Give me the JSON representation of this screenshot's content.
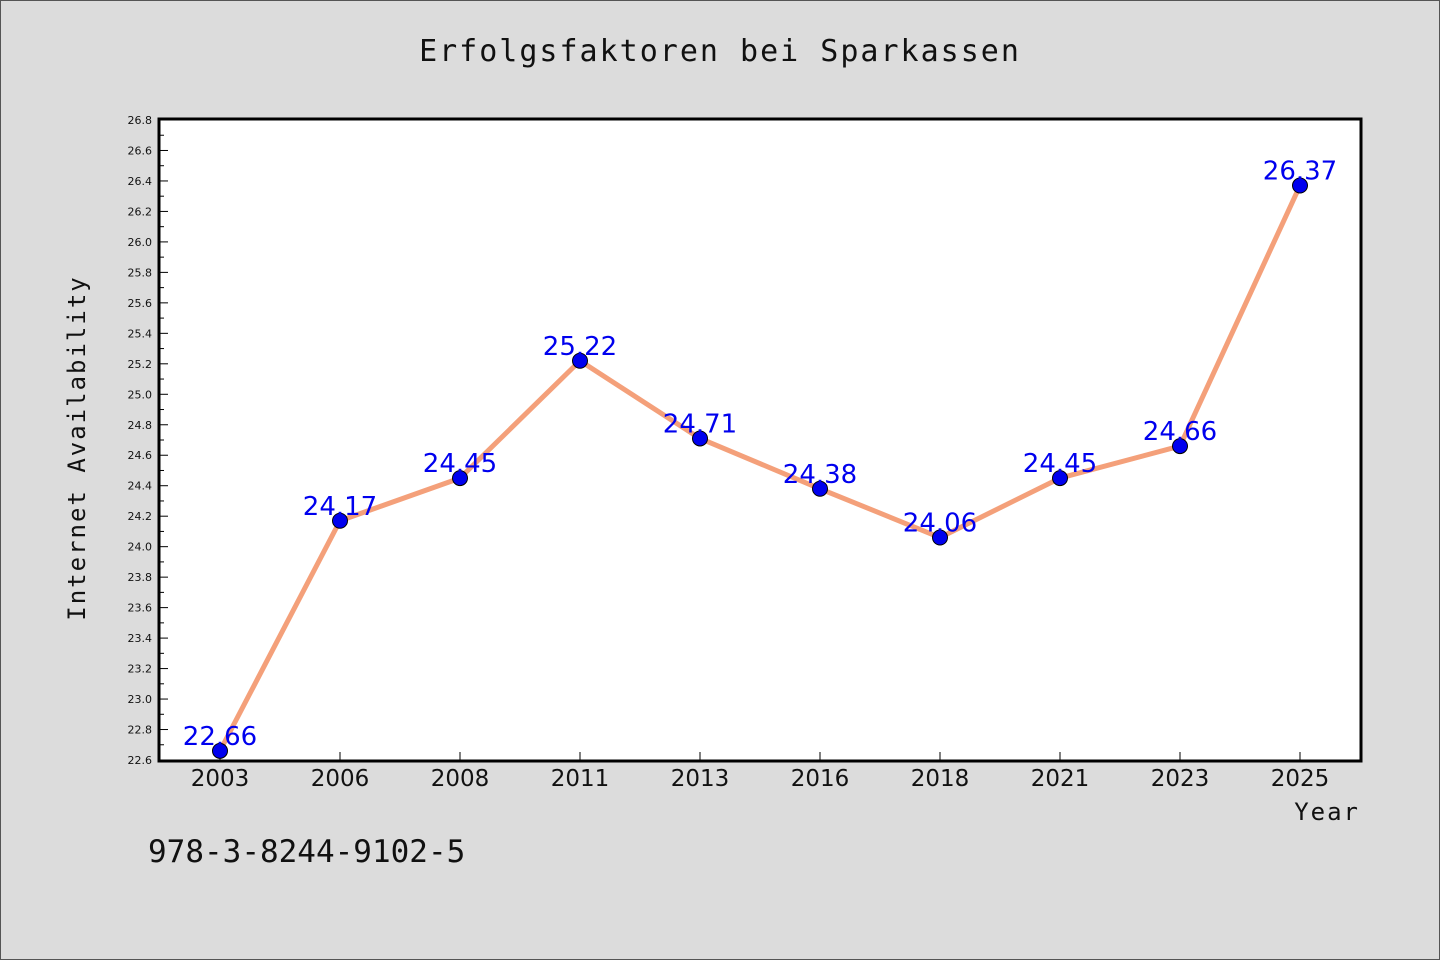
{
  "chart_data": {
    "type": "line",
    "title": "Erfolgsfaktoren bei Sparkassen",
    "xlabel": "Year",
    "ylabel": "Internet Availability",
    "categories": [
      "2003",
      "2006",
      "2008",
      "2011",
      "2013",
      "2016",
      "2018",
      "2021",
      "2023",
      "2025"
    ],
    "series": [
      {
        "values": [
          22.66,
          24.17,
          24.45,
          25.22,
          24.71,
          24.38,
          24.06,
          24.45,
          24.66,
          26.37
        ],
        "line_color": "#f4a07a",
        "marker_color": "#0000ee"
      }
    ],
    "data_labels": [
      "22.66",
      "24.17",
      "24.45",
      "25.22",
      "24.71",
      "24.38",
      "24.06",
      "24.45",
      "24.66",
      "26.37"
    ],
    "ylim": [
      22.6,
      26.8
    ],
    "y_ticks": [
      "22.6",
      "22.8",
      "23.0",
      "23.2",
      "23.4",
      "23.6",
      "23.8",
      "24.0",
      "24.2",
      "24.4",
      "24.6",
      "24.8",
      "25.0",
      "25.2",
      "25.4",
      "25.6",
      "25.8",
      "26.0",
      "26.2",
      "26.4",
      "26.6",
      "26.8"
    ],
    "grid": false,
    "legend": "none"
  },
  "footer": {
    "isbn": "978-3-8244-9102-5"
  },
  "colors": {
    "background": "#dcdcdc",
    "plot_background": "#ffffff"
  }
}
